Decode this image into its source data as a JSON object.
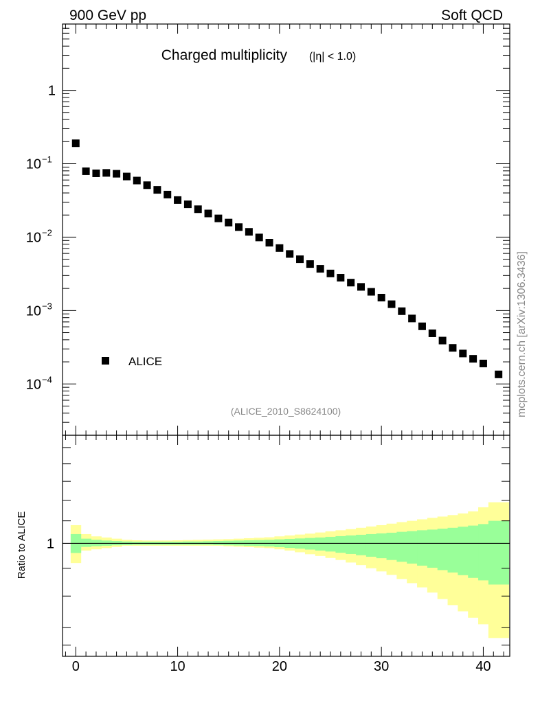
{
  "header": {
    "left": "900 GeV pp",
    "right": "Soft QCD"
  },
  "side_label": "mcplots.cern.ch [arXiv:1306.3436]",
  "chart_data": [
    {
      "type": "scatter",
      "title": "Charged multiplicity",
      "title_suffix": "(|η| < 1.0)",
      "analysis_label": "(ALICE_2010_S8624100)",
      "xlabel": "",
      "ylabel": "",
      "xlim": [
        -1.3,
        42.6
      ],
      "ylim": [
        2e-05,
        8.0
      ],
      "yscale": "log",
      "y_tick_labels": [
        "1",
        "10",
        "10",
        "10",
        "10"
      ],
      "y_tick_exponents": [
        "",
        "−1",
        "−2",
        "−3",
        "−4"
      ],
      "legend": {
        "position": "bottom-left",
        "marker": "square"
      },
      "series": [
        {
          "name": "ALICE",
          "color": "#000000",
          "x": [
            0,
            1,
            2,
            3,
            4,
            5,
            6,
            7,
            8,
            9,
            10,
            11,
            12,
            13,
            14,
            15,
            16,
            17,
            18,
            19,
            20,
            21,
            22,
            23,
            24,
            25,
            26,
            27,
            28,
            29,
            30,
            31,
            32,
            33,
            34,
            35,
            36,
            37,
            38,
            39,
            40,
            41.5
          ],
          "y": [
            0.19,
            0.079,
            0.074,
            0.075,
            0.073,
            0.067,
            0.059,
            0.051,
            0.044,
            0.038,
            0.032,
            0.028,
            0.024,
            0.021,
            0.018,
            0.0158,
            0.0137,
            0.0118,
            0.0099,
            0.0084,
            0.0071,
            0.0059,
            0.005,
            0.0043,
            0.0037,
            0.0032,
            0.0028,
            0.0024,
            0.0021,
            0.0018,
            0.0015,
            0.00122,
            0.00098,
            0.00078,
            0.00061,
            0.00049,
            0.00039,
            0.00031,
            0.00026,
            0.00022,
            0.00019,
            0.000135
          ]
        }
      ]
    },
    {
      "type": "area",
      "ylabel": "Ratio to ALICE",
      "xlim": [
        -1.3,
        42.6
      ],
      "ylim": [
        0.62,
        1.58
      ],
      "yscale": "log",
      "y_tick_labels": [
        "1"
      ],
      "x_tick_labels": [
        "0",
        "10",
        "20",
        "30",
        "40"
      ],
      "reference_line": 1.0,
      "bands": [
        {
          "color": "#ffff99",
          "bin_edges": [
            -0.5,
            0.5,
            1.5,
            2.5,
            3.5,
            4.5,
            5.5,
            6.5,
            7.5,
            8.5,
            9.5,
            10.5,
            11.5,
            12.5,
            13.5,
            14.5,
            15.5,
            16.5,
            17.5,
            18.5,
            19.5,
            20.5,
            21.5,
            22.5,
            23.5,
            24.5,
            25.5,
            26.5,
            27.5,
            28.5,
            29.5,
            30.5,
            31.5,
            32.5,
            33.5,
            34.5,
            35.5,
            36.5,
            37.5,
            38.5,
            39.5,
            40.5,
            42.5
          ],
          "lower": [
            0.92,
            0.97,
            0.975,
            0.98,
            0.985,
            0.99,
            0.99,
            0.99,
            0.99,
            0.99,
            0.99,
            0.99,
            0.99,
            0.99,
            0.99,
            0.988,
            0.986,
            0.984,
            0.982,
            0.98,
            0.975,
            0.97,
            0.963,
            0.955,
            0.948,
            0.94,
            0.932,
            0.922,
            0.912,
            0.9,
            0.888,
            0.875,
            0.86,
            0.845,
            0.83,
            0.812,
            0.79,
            0.77,
            0.75,
            0.73,
            0.71,
            0.67
          ],
          "upper": [
            1.08,
            1.04,
            1.03,
            1.025,
            1.02,
            1.015,
            1.013,
            1.012,
            1.012,
            1.012,
            1.013,
            1.014,
            1.015,
            1.016,
            1.017,
            1.018,
            1.02,
            1.022,
            1.024,
            1.026,
            1.03,
            1.034,
            1.038,
            1.042,
            1.047,
            1.052,
            1.057,
            1.062,
            1.068,
            1.074,
            1.08,
            1.087,
            1.094,
            1.1,
            1.107,
            1.114,
            1.12,
            1.127,
            1.135,
            1.145,
            1.165,
            1.19
          ]
        },
        {
          "color": "#99ff99",
          "bin_edges": [
            -0.5,
            0.5,
            1.5,
            2.5,
            3.5,
            4.5,
            5.5,
            6.5,
            7.5,
            8.5,
            9.5,
            10.5,
            11.5,
            12.5,
            13.5,
            14.5,
            15.5,
            16.5,
            17.5,
            18.5,
            19.5,
            20.5,
            21.5,
            22.5,
            23.5,
            24.5,
            25.5,
            26.5,
            27.5,
            28.5,
            29.5,
            30.5,
            31.5,
            32.5,
            33.5,
            34.5,
            35.5,
            36.5,
            37.5,
            38.5,
            39.5,
            40.5,
            42.5
          ],
          "lower": [
            0.96,
            0.985,
            0.988,
            0.99,
            0.992,
            0.993,
            0.994,
            0.994,
            0.994,
            0.994,
            0.994,
            0.994,
            0.994,
            0.994,
            0.993,
            0.992,
            0.991,
            0.99,
            0.989,
            0.987,
            0.984,
            0.981,
            0.978,
            0.974,
            0.97,
            0.966,
            0.961,
            0.956,
            0.951,
            0.945,
            0.939,
            0.932,
            0.925,
            0.918,
            0.91,
            0.902,
            0.893,
            0.884,
            0.874,
            0.864,
            0.855,
            0.84
          ],
          "upper": [
            1.04,
            1.02,
            1.015,
            1.012,
            1.01,
            1.008,
            1.007,
            1.007,
            1.007,
            1.007,
            1.007,
            1.008,
            1.008,
            1.009,
            1.01,
            1.011,
            1.012,
            1.013,
            1.014,
            1.015,
            1.017,
            1.019,
            1.021,
            1.023,
            1.025,
            1.028,
            1.031,
            1.034,
            1.037,
            1.04,
            1.043,
            1.046,
            1.05,
            1.053,
            1.057,
            1.06,
            1.064,
            1.068,
            1.073,
            1.078,
            1.085,
            1.1
          ]
        }
      ]
    }
  ]
}
